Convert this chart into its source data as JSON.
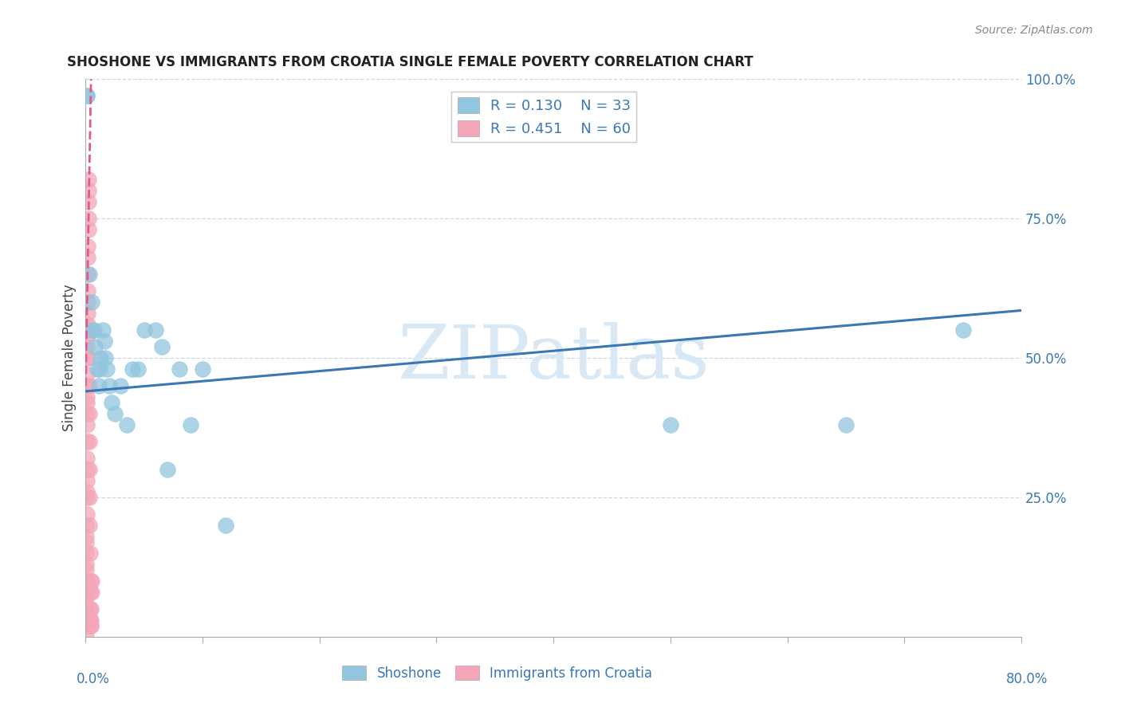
{
  "title": "SHOSHONE VS IMMIGRANTS FROM CROATIA SINGLE FEMALE POVERTY CORRELATION CHART",
  "source": "Source: ZipAtlas.com",
  "ylabel": "Single Female Poverty",
  "legend_label1": "Shoshone",
  "legend_label2": "Immigrants from Croatia",
  "R1": 0.13,
  "N1": 33,
  "R2": 0.451,
  "N2": 60,
  "color_blue": "#92c5de",
  "color_blue_edge": "#92c5de",
  "color_pink": "#f4a6b8",
  "color_pink_edge": "#f4a6b8",
  "color_blue_line": "#3a78b5",
  "color_pink_line": "#e05a8a",
  "background": "#ffffff",
  "watermark_text": "ZIPatlas",
  "watermark_color": "#d8e8f5",
  "xlim": [
    0.0,
    0.8
  ],
  "ylim": [
    0.0,
    1.0
  ],
  "yticks": [
    0.0,
    0.25,
    0.5,
    0.75,
    1.0
  ],
  "ytick_labels": [
    "",
    "25.0%",
    "50.0%",
    "75.0%",
    "100.0%"
  ],
  "shoshone_x": [
    0.001,
    0.001,
    0.003,
    0.005,
    0.006,
    0.007,
    0.008,
    0.01,
    0.011,
    0.012,
    0.013,
    0.015,
    0.016,
    0.017,
    0.018,
    0.02,
    0.022,
    0.025,
    0.03,
    0.035,
    0.04,
    0.045,
    0.05,
    0.06,
    0.065,
    0.07,
    0.08,
    0.09,
    0.1,
    0.12,
    0.5,
    0.65,
    0.75
  ],
  "shoshone_y": [
    0.97,
    0.97,
    0.65,
    0.6,
    0.55,
    0.55,
    0.52,
    0.48,
    0.45,
    0.48,
    0.5,
    0.55,
    0.53,
    0.5,
    0.48,
    0.45,
    0.42,
    0.4,
    0.45,
    0.38,
    0.48,
    0.48,
    0.55,
    0.55,
    0.52,
    0.3,
    0.48,
    0.38,
    0.48,
    0.2,
    0.38,
    0.38,
    0.55
  ],
  "croatia_x": [
    0.0002,
    0.0002,
    0.0003,
    0.0003,
    0.0004,
    0.0004,
    0.0005,
    0.0005,
    0.0005,
    0.0006,
    0.0006,
    0.0007,
    0.0007,
    0.0008,
    0.0008,
    0.0009,
    0.0009,
    0.001,
    0.001,
    0.001,
    0.001,
    0.0011,
    0.0011,
    0.0012,
    0.0012,
    0.0013,
    0.0013,
    0.0014,
    0.0015,
    0.0015,
    0.0016,
    0.0017,
    0.0018,
    0.0019,
    0.002,
    0.0021,
    0.0022,
    0.0023,
    0.0024,
    0.0025,
    0.0026,
    0.0027,
    0.0028,
    0.0029,
    0.003,
    0.0031,
    0.0032,
    0.0033,
    0.0034,
    0.0035,
    0.0036,
    0.0037,
    0.0038,
    0.004,
    0.0042,
    0.0044,
    0.0046,
    0.0048,
    0.005,
    0.0055
  ],
  "croatia_y": [
    0.0,
    0.02,
    0.03,
    0.05,
    0.06,
    0.08,
    0.1,
    0.12,
    0.13,
    0.15,
    0.17,
    0.18,
    0.2,
    0.22,
    0.25,
    0.26,
    0.28,
    0.3,
    0.32,
    0.35,
    0.38,
    0.4,
    0.42,
    0.43,
    0.45,
    0.47,
    0.5,
    0.52,
    0.54,
    0.56,
    0.58,
    0.6,
    0.62,
    0.65,
    0.68,
    0.7,
    0.73,
    0.75,
    0.78,
    0.8,
    0.82,
    0.55,
    0.5,
    0.45,
    0.4,
    0.35,
    0.3,
    0.25,
    0.2,
    0.15,
    0.1,
    0.08,
    0.05,
    0.03,
    0.02,
    0.02,
    0.03,
    0.05,
    0.08,
    0.1
  ],
  "blue_line_x": [
    0.0,
    0.8
  ],
  "blue_line_y": [
    0.44,
    0.585
  ],
  "pink_line_x_start": 0.0,
  "pink_line_y_start": 0.45,
  "pink_line_slope": 120.0
}
